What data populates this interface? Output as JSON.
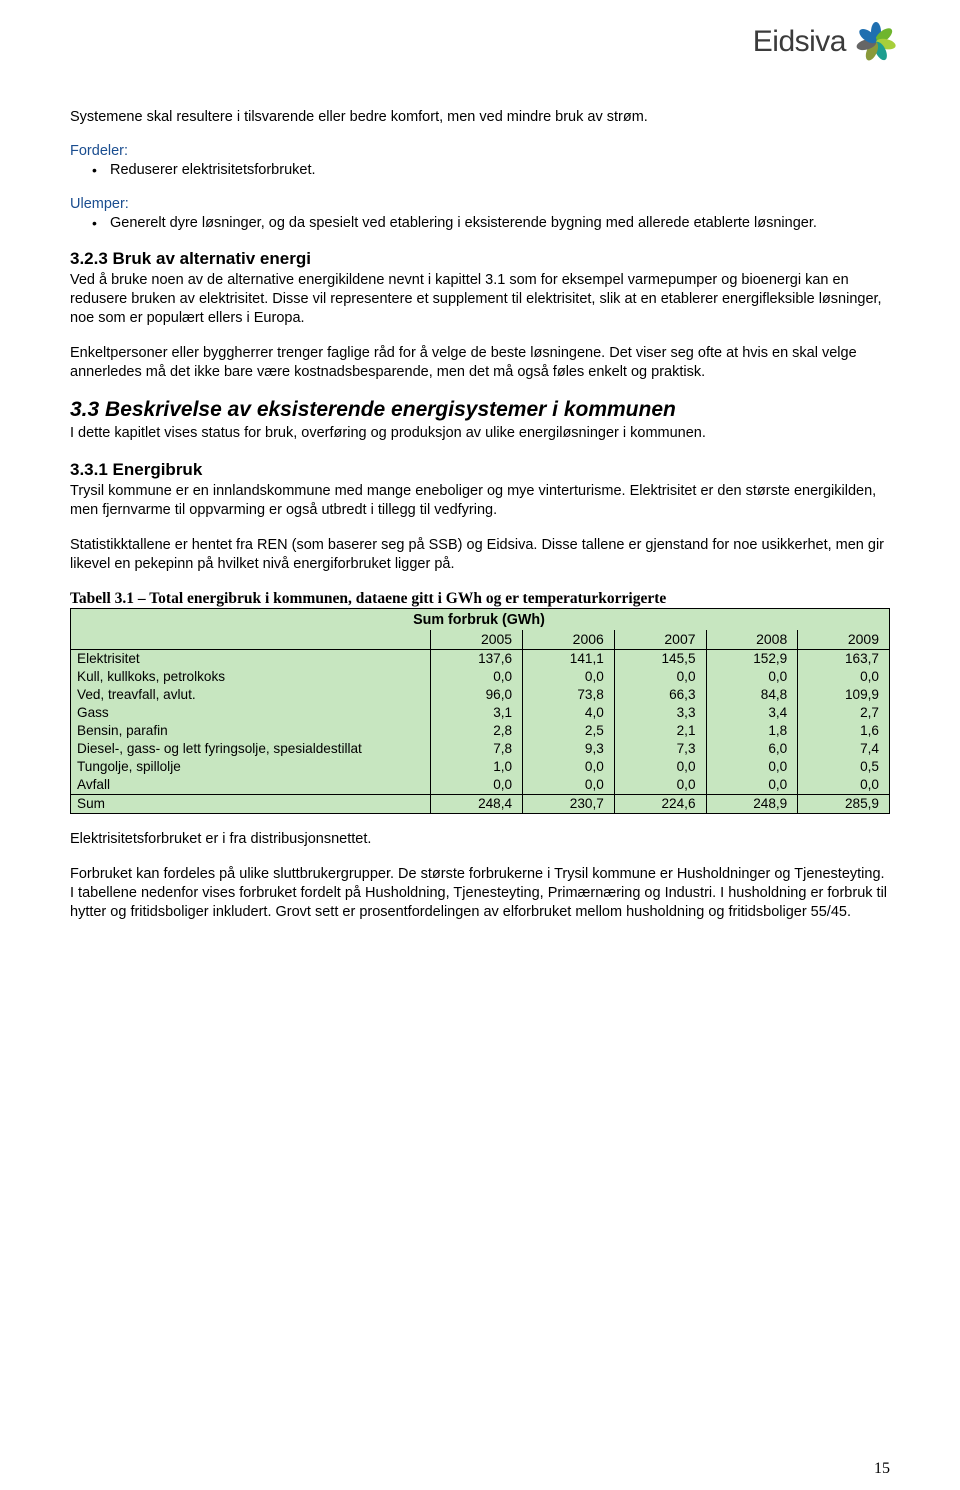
{
  "logo_text": "Eidsiva",
  "intro_para": "Systemene skal resultere i tilsvarende eller bedre komfort, men ved mindre bruk av strøm.",
  "fordeler_label": "Fordeler:",
  "fordeler_items": [
    "Reduserer elektrisitetsforbruket."
  ],
  "ulemper_label": "Ulemper:",
  "ulemper_items": [
    "Generelt dyre løsninger, og da spesielt ved etablering i eksisterende bygning med allerede etablerte løsninger."
  ],
  "h323": "3.2.3 Bruk av alternativ energi",
  "p323a": "Ved å bruke noen av de alternative energikildene nevnt i kapittel 3.1 som for eksempel varmepumper og bioenergi kan en redusere bruken av elektrisitet. Disse vil representere et supplement til elektrisitet, slik at en etablerer energifleksible løsninger, noe som er populært ellers i Europa.",
  "p323b": "Enkeltpersoner eller byggherrer trenger faglige råd for å velge de beste løsningene. Det viser seg ofte at hvis en skal velge annerledes må det ikke bare være kostnadsbesparende, men det må også føles enkelt og praktisk.",
  "h33": "3.3 Beskrivelse av eksisterende energisystemer i kommunen",
  "p33": "I dette kapitlet vises status for bruk, overføring og produksjon av ulike energiløsninger i kommunen.",
  "h331": "3.3.1 Energibruk",
  "p331a": "Trysil kommune er en innlandskommune med mange eneboliger og mye vinterturisme. Elektrisitet er den største energikilden, men fjernvarme til oppvarming er også utbredt i tillegg til vedfyring.",
  "p331b": "Statistikktallene er hentet fra REN (som baserer seg på SSB) og Eidsiva. Disse tallene er gjenstand for noe usikkerhet, men gir likevel en pekepinn på hvilket nivå energiforbruket ligger på.",
  "table_caption": "Tabell 3.1 – Total energibruk i kommunen, dataene gitt i GWh og er temperaturkorrigerte",
  "table": {
    "header_title": "Sum forbruk    (GWh)",
    "years": [
      "2005",
      "2006",
      "2007",
      "2008",
      "2009"
    ],
    "rows": [
      {
        "label": "Elektrisitet",
        "vals": [
          "137,6",
          "141,1",
          "145,5",
          "152,9",
          "163,7"
        ]
      },
      {
        "label": "Kull, kullkoks, petrolkoks",
        "vals": [
          "0,0",
          "0,0",
          "0,0",
          "0,0",
          "0,0"
        ]
      },
      {
        "label": "Ved, treavfall, avlut.",
        "vals": [
          "96,0",
          "73,8",
          "66,3",
          "84,8",
          "109,9"
        ]
      },
      {
        "label": "Gass",
        "vals": [
          "3,1",
          "4,0",
          "3,3",
          "3,4",
          "2,7"
        ]
      },
      {
        "label": "Bensin, parafin",
        "vals": [
          "2,8",
          "2,5",
          "2,1",
          "1,8",
          "1,6"
        ]
      },
      {
        "label": "Diesel-, gass- og lett fyringsolje, spesialdestillat",
        "vals": [
          "7,8",
          "9,3",
          "7,3",
          "6,0",
          "7,4"
        ]
      },
      {
        "label": "Tungolje, spillolje",
        "vals": [
          "1,0",
          "0,0",
          "0,0",
          "0,0",
          "0,5"
        ]
      },
      {
        "label": "Avfall",
        "vals": [
          "0,0",
          "0,0",
          "0,0",
          "0,0",
          "0,0"
        ]
      }
    ],
    "sum": {
      "label": "Sum",
      "vals": [
        "248,4",
        "230,7",
        "224,6",
        "248,9",
        "285,9"
      ]
    },
    "bg_color": "#c7e6c0"
  },
  "p_after_table_1": "Elektrisitetsforbruket er i fra distribusjonsnettet.",
  "p_after_table_2": "Forbruket kan fordeles på ulike sluttbrukergrupper. De største forbrukerne i Trysil kommune er Husholdninger og Tjenesteyting. I tabellene nedenfor vises forbruket fordelt på Husholdning, Tjenesteyting, Primærnæring og Industri. I husholdning er forbruk til hytter og fritidsboliger inkludert. Grovt sett er prosentfordelingen av elforbruket mellom husholdning og fritidsboliger 55/45.",
  "page_number": "15",
  "logo_colors": {
    "blue": "#1f6fb0",
    "green1": "#6fb52e",
    "green2": "#a7cf3a",
    "teal": "#1d9e8f",
    "olive": "#8a9a3b",
    "grey": "#666666"
  }
}
